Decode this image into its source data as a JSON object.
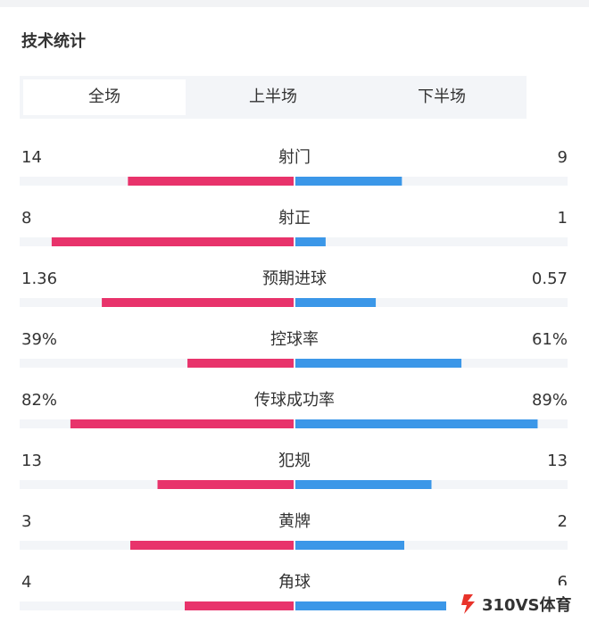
{
  "header": {
    "title": "技术统计"
  },
  "tabs": [
    "全场",
    "上半场",
    "下半场"
  ],
  "stats": [
    {
      "label": "射门",
      "home": 14,
      "away": 9
    },
    {
      "label": "射正",
      "home": 8,
      "away": 1
    },
    {
      "label": "预期进球",
      "home": 1.36,
      "away": 0.57
    },
    {
      "label": "控球率",
      "home": 39,
      "away": 61,
      "home_label": "39%",
      "away_label": "61%"
    },
    {
      "label": "传球成功率",
      "home": 82,
      "away": 89,
      "home_label": "82%",
      "away_label": "89%"
    },
    {
      "label": "犯规",
      "home": 13,
      "away": 13
    },
    {
      "label": "黄牌",
      "home": 3,
      "away": 2
    },
    {
      "label": "角球",
      "home": 4,
      "away": 6
    }
  ],
  "watermark": "310VS体育"
}
